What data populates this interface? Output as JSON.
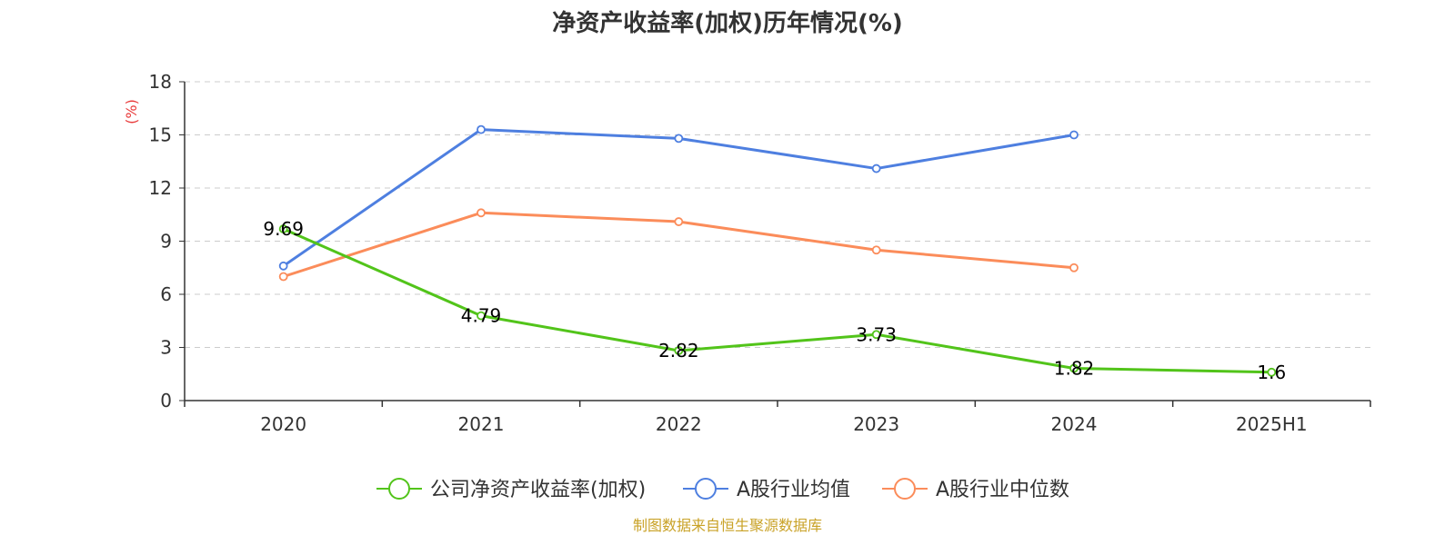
{
  "chart_data": {
    "type": "line",
    "title": "净资产收益率(加权)历年情况(%)",
    "ylabel": "(%)",
    "xlabel": "",
    "categories": [
      "2020",
      "2021",
      "2022",
      "2023",
      "2024",
      "2025H1"
    ],
    "ylim": [
      0,
      18
    ],
    "yticks": [
      0,
      3,
      6,
      9,
      12,
      15,
      18
    ],
    "grid": true,
    "legend_position": "bottom",
    "series": [
      {
        "name": "公司净资产收益率(加权)",
        "color": "#52c41a",
        "values": [
          9.69,
          4.79,
          2.82,
          3.73,
          1.82,
          1.6
        ],
        "data_labels": [
          "9.69",
          "4.79",
          "2.82",
          "3.73",
          "1.82",
          "1.6"
        ]
      },
      {
        "name": "A股行业均值",
        "color": "#4e7fe0",
        "values": [
          7.6,
          15.3,
          14.8,
          13.1,
          15.0,
          null
        ]
      },
      {
        "name": "A股行业中位数",
        "color": "#fb8c5a",
        "values": [
          7.0,
          10.6,
          10.1,
          8.5,
          7.5,
          null
        ]
      }
    ]
  },
  "source": {
    "text": "制图数据来自恒生聚源数据库",
    "color": "#c9a227"
  },
  "ylabel_color": "#e83a3a"
}
